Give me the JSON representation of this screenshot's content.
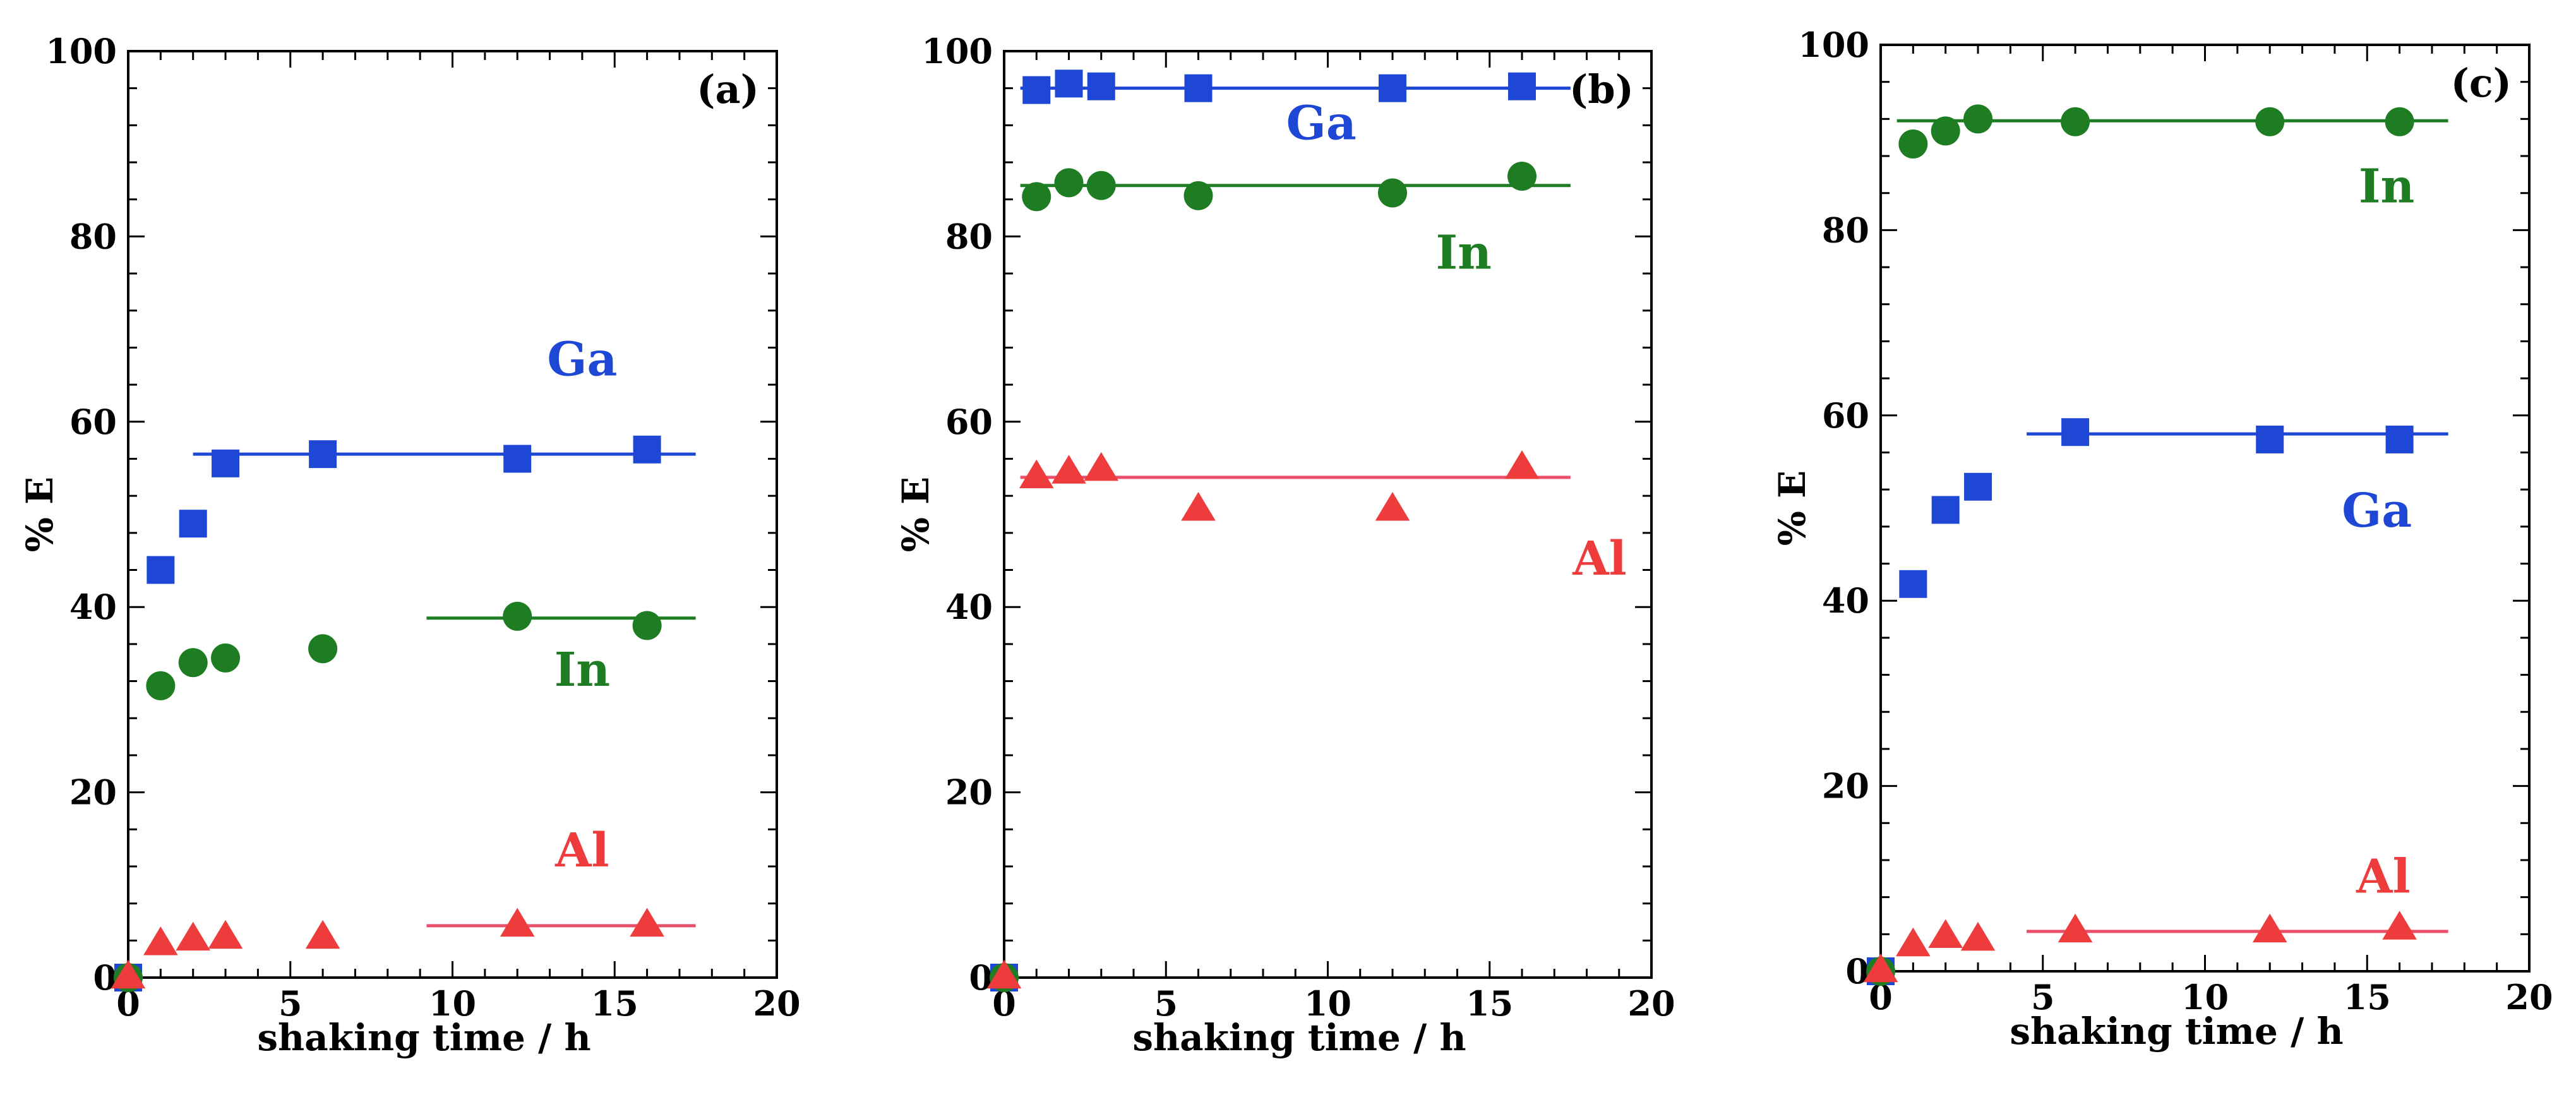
{
  "figure": {
    "background": "#ffffff"
  },
  "colors": {
    "Ga": "#1f47d6",
    "In": "#1e7d22",
    "Al": "#ee3b3b",
    "Al_line": "#e8506a"
  },
  "chart_data": [
    {
      "type": "scatter",
      "tag": "(a)",
      "xlabel": "shaking time / h",
      "ylabel": "% E",
      "xlim": [
        0,
        20
      ],
      "ylim": [
        0,
        100
      ],
      "xticks": [
        "0",
        "5",
        "10",
        "15",
        "20"
      ],
      "yticks": [
        "0",
        "20",
        "40",
        "60",
        "80",
        "100"
      ],
      "series": [
        {
          "name": "Ga",
          "marker": "square",
          "x": [
            0,
            1,
            2,
            3,
            6,
            12,
            16
          ],
          "y": [
            0,
            44,
            49,
            55.5,
            56.5,
            56,
            57
          ],
          "fit_line": {
            "x": [
              2,
              17.5
            ],
            "y": 56.5
          },
          "label": "Ga",
          "label_at": [
            14,
            65
          ]
        },
        {
          "name": "In",
          "marker": "circle",
          "x": [
            0,
            1,
            2,
            3,
            6,
            12,
            16
          ],
          "y": [
            0,
            31.5,
            34,
            34.5,
            35.5,
            39,
            38
          ],
          "fit_line": {
            "x": [
              9.2,
              17.5
            ],
            "y": 38.8
          },
          "label": "In",
          "label_at": [
            14,
            31.5
          ]
        },
        {
          "name": "Al",
          "marker": "triangle",
          "x": [
            0,
            1,
            2,
            3,
            6,
            12,
            16
          ],
          "y": [
            0,
            3.6,
            4.1,
            4.3,
            4.3,
            5.6,
            5.6
          ],
          "fit_line": {
            "x": [
              9.2,
              17.5
            ],
            "y": 5.6
          },
          "label": "Al",
          "label_at": [
            14,
            12
          ]
        }
      ]
    },
    {
      "type": "scatter",
      "tag": "(b)",
      "xlabel": "shaking time / h",
      "ylabel": "% E",
      "xlim": [
        0,
        20
      ],
      "ylim": [
        0,
        100
      ],
      "xticks": [
        "0",
        "5",
        "10",
        "15",
        "20"
      ],
      "yticks": [
        "0",
        "20",
        "40",
        "60",
        "80",
        "100"
      ],
      "series": [
        {
          "name": "Ga",
          "marker": "square",
          "x": [
            0,
            1,
            2,
            3,
            6,
            12,
            16
          ],
          "y": [
            0,
            95.8,
            96.5,
            96.2,
            96,
            96,
            96.2
          ],
          "fit_line": {
            "x": [
              0.5,
              17.5
            ],
            "y": 96
          },
          "label": "Ga",
          "label_at": [
            9.8,
            90.5
          ]
        },
        {
          "name": "In",
          "marker": "circle",
          "x": [
            0,
            1,
            2,
            3,
            6,
            12,
            16
          ],
          "y": [
            0,
            84.3,
            85.8,
            85.5,
            84.4,
            84.7,
            86.5
          ],
          "fit_line": {
            "x": [
              0.5,
              17.5
            ],
            "y": 85.5
          },
          "label": "In",
          "label_at": [
            14.2,
            76.5
          ]
        },
        {
          "name": "Al",
          "marker": "triangle",
          "x": [
            0,
            1,
            2,
            3,
            6,
            12,
            16
          ],
          "y": [
            0,
            54,
            54.5,
            54.8,
            50.5,
            50.5,
            55
          ],
          "fit_line": {
            "x": [
              0.5,
              17.5
            ],
            "y": 54
          },
          "label": "Al",
          "label_at": [
            18.4,
            43.5
          ]
        }
      ]
    },
    {
      "type": "scatter",
      "tag": "(c)",
      "xlabel": "shaking time / h",
      "ylabel": "% E",
      "xlim": [
        0,
        20
      ],
      "ylim": [
        0,
        100
      ],
      "xticks": [
        "0",
        "5",
        "10",
        "15",
        "20"
      ],
      "yticks": [
        "0",
        "20",
        "40",
        "60",
        "80",
        "100"
      ],
      "series": [
        {
          "name": "Ga",
          "marker": "square",
          "x": [
            0,
            1,
            2,
            3,
            6,
            12,
            16
          ],
          "y": [
            0,
            41.8,
            49.8,
            52.3,
            58.2,
            57.4,
            57.4
          ],
          "fit_line": {
            "x": [
              4.5,
              17.5
            ],
            "y": 58
          },
          "label": "Ga",
          "label_at": [
            15.3,
            48
          ]
        },
        {
          "name": "In",
          "marker": "circle",
          "x": [
            0,
            1,
            2,
            3,
            6,
            12,
            16
          ],
          "y": [
            0,
            89.3,
            90.7,
            92,
            91.7,
            91.7,
            91.7
          ],
          "fit_line": {
            "x": [
              0.5,
              17.5
            ],
            "y": 91.8
          },
          "label": "In",
          "label_at": [
            15.6,
            83
          ]
        },
        {
          "name": "Al",
          "marker": "triangle",
          "x": [
            0,
            1,
            2,
            3,
            6,
            12,
            16
          ],
          "y": [
            0,
            2.8,
            3.7,
            3.4,
            4.3,
            4.3,
            4.6
          ],
          "fit_line": {
            "x": [
              4.5,
              17.5
            ],
            "y": 4.3
          },
          "label": "Al",
          "label_at": [
            15.5,
            8.5
          ]
        }
      ]
    }
  ]
}
